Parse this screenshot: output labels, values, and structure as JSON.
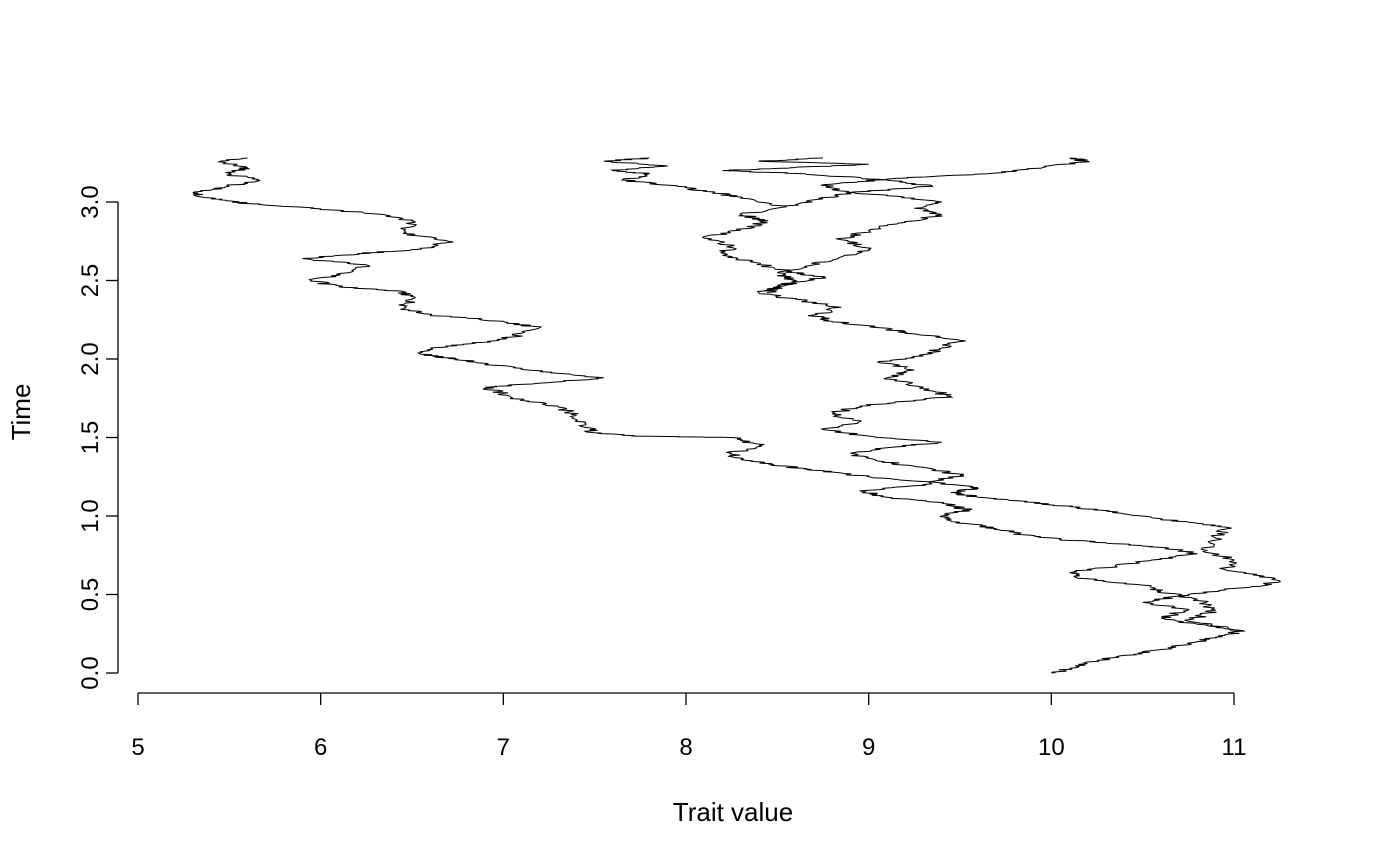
{
  "chart_data": {
    "type": "line",
    "title": "",
    "xlabel": "Trait value",
    "ylabel": "Time",
    "xlim": [
      5,
      11.3
    ],
    "ylim": [
      0,
      3.25
    ],
    "x_ticks": [
      "5",
      "6",
      "7",
      "8",
      "9",
      "10",
      "11"
    ],
    "x_tick_values": [
      5,
      6,
      7,
      8,
      9,
      10,
      11
    ],
    "y_ticks": [
      "0.0",
      "0.5",
      "1.0",
      "1.5",
      "2.0",
      "2.5",
      "3.0"
    ],
    "y_tick_values": [
      0,
      0.5,
      1.0,
      1.5,
      2.0,
      2.5,
      3.0
    ],
    "grid": false,
    "line_color": "#000000",
    "series": [
      {
        "points": [
          [
            10.0,
            0.0
          ],
          [
            10.1,
            0.03
          ],
          [
            10.25,
            0.08
          ],
          [
            10.45,
            0.12
          ],
          [
            10.6,
            0.15
          ],
          [
            10.8,
            0.2
          ],
          [
            10.95,
            0.24
          ],
          [
            11.05,
            0.27
          ]
        ]
      },
      {
        "points": [
          [
            11.05,
            0.27
          ],
          [
            10.8,
            0.31
          ],
          [
            10.6,
            0.35
          ],
          [
            10.75,
            0.4
          ],
          [
            10.5,
            0.45
          ],
          [
            10.75,
            0.5
          ],
          [
            11.1,
            0.55
          ],
          [
            11.25,
            0.58
          ],
          [
            11.15,
            0.62
          ],
          [
            10.95,
            0.66
          ],
          [
            11.0,
            0.72
          ],
          [
            10.85,
            0.78
          ],
          [
            10.9,
            0.86
          ],
          [
            10.95,
            0.93
          ],
          [
            10.75,
            0.96
          ],
          [
            10.55,
            0.99
          ],
          [
            10.3,
            1.03
          ],
          [
            10.1,
            1.06
          ],
          [
            9.85,
            1.09
          ],
          [
            9.6,
            1.12
          ],
          [
            9.45,
            1.15
          ],
          [
            9.6,
            1.18
          ],
          [
            9.3,
            1.22
          ],
          [
            9.0,
            1.25
          ],
          [
            8.8,
            1.28
          ],
          [
            8.65,
            1.3
          ],
          [
            8.45,
            1.33
          ],
          [
            8.3,
            1.36
          ],
          [
            8.25,
            1.4
          ],
          [
            8.4,
            1.45
          ],
          [
            8.25,
            1.5
          ],
          [
            7.7,
            1.51
          ],
          [
            7.5,
            1.53
          ],
          [
            7.45,
            1.58
          ],
          [
            7.4,
            1.64
          ],
          [
            7.3,
            1.7
          ],
          [
            7.1,
            1.74
          ],
          [
            7.0,
            1.78
          ],
          [
            6.9,
            1.82
          ],
          [
            7.25,
            1.85
          ],
          [
            7.55,
            1.88
          ],
          [
            7.2,
            1.92
          ],
          [
            6.95,
            1.96
          ],
          [
            6.75,
            2.0
          ],
          [
            6.55,
            2.03
          ],
          [
            6.6,
            2.07
          ],
          [
            6.85,
            2.1
          ],
          [
            7.05,
            2.14
          ],
          [
            7.2,
            2.2
          ],
          [
            7.0,
            2.24
          ],
          [
            6.6,
            2.28
          ],
          [
            6.45,
            2.32
          ],
          [
            6.5,
            2.38
          ],
          [
            6.45,
            2.43
          ],
          [
            6.1,
            2.46
          ],
          [
            5.95,
            2.5
          ],
          [
            6.15,
            2.55
          ],
          [
            6.25,
            2.6
          ],
          [
            5.9,
            2.64
          ],
          [
            6.2,
            2.67
          ],
          [
            6.55,
            2.7
          ],
          [
            6.7,
            2.75
          ],
          [
            6.45,
            2.8
          ],
          [
            6.5,
            2.88
          ],
          [
            6.35,
            2.92
          ],
          [
            5.95,
            2.96
          ],
          [
            5.6,
            2.99
          ],
          [
            5.4,
            3.02
          ],
          [
            5.3,
            3.06
          ],
          [
            5.5,
            3.1
          ],
          [
            5.65,
            3.14
          ],
          [
            5.5,
            3.18
          ],
          [
            5.6,
            3.22
          ],
          [
            5.45,
            3.26
          ],
          [
            5.6,
            3.28
          ]
        ]
      },
      {
        "points": [
          [
            11.05,
            0.27
          ],
          [
            10.75,
            0.33
          ],
          [
            10.9,
            0.4
          ],
          [
            10.8,
            0.47
          ],
          [
            10.6,
            0.52
          ],
          [
            10.5,
            0.56
          ],
          [
            10.2,
            0.6
          ],
          [
            10.1,
            0.64
          ],
          [
            10.35,
            0.68
          ],
          [
            10.55,
            0.72
          ],
          [
            10.8,
            0.76
          ],
          [
            10.6,
            0.8
          ],
          [
            10.3,
            0.83
          ],
          [
            10.05,
            0.85
          ],
          [
            9.85,
            0.88
          ],
          [
            9.7,
            0.92
          ],
          [
            9.5,
            0.96
          ],
          [
            9.4,
            1.0
          ],
          [
            9.55,
            1.04
          ],
          [
            9.4,
            1.08
          ],
          [
            9.1,
            1.12
          ],
          [
            8.95,
            1.16
          ],
          [
            9.3,
            1.2
          ],
          [
            9.5,
            1.26
          ],
          [
            9.3,
            1.31
          ],
          [
            9.05,
            1.35
          ],
          [
            8.9,
            1.4
          ],
          [
            9.15,
            1.44
          ],
          [
            9.4,
            1.47
          ],
          [
            9.05,
            1.5
          ],
          [
            8.75,
            1.55
          ],
          [
            8.95,
            1.6
          ],
          [
            8.8,
            1.65
          ],
          [
            8.95,
            1.7
          ],
          [
            9.2,
            1.73
          ],
          [
            9.45,
            1.76
          ],
          [
            9.3,
            1.82
          ],
          [
            9.1,
            1.88
          ],
          [
            9.25,
            1.93
          ],
          [
            9.05,
            1.98
          ],
          [
            9.3,
            2.02
          ],
          [
            9.4,
            2.07
          ],
          [
            9.5,
            2.12
          ],
          [
            9.25,
            2.16
          ],
          [
            9.05,
            2.2
          ],
          [
            8.8,
            2.24
          ],
          [
            8.7,
            2.28
          ],
          [
            8.85,
            2.33
          ],
          [
            8.6,
            2.38
          ],
          [
            8.4,
            2.42
          ],
          [
            8.55,
            2.47
          ],
          [
            8.75,
            2.52
          ],
          [
            8.55,
            2.56
          ],
          [
            8.35,
            2.62
          ],
          [
            8.2,
            2.66
          ],
          [
            8.25,
            2.72
          ],
          [
            8.1,
            2.77
          ],
          [
            8.3,
            2.82
          ],
          [
            8.45,
            2.88
          ],
          [
            8.3,
            2.92
          ],
          [
            8.55,
            2.97
          ],
          [
            8.35,
            3.02
          ],
          [
            8.15,
            3.06
          ],
          [
            7.95,
            3.1
          ],
          [
            7.65,
            3.14
          ],
          [
            7.8,
            3.18
          ],
          [
            7.6,
            3.2
          ],
          [
            7.9,
            3.23
          ],
          [
            7.55,
            3.26
          ],
          [
            7.8,
            3.28
          ]
        ]
      },
      {
        "points": [
          [
            8.45,
            2.42
          ],
          [
            8.5,
            2.46
          ],
          [
            8.6,
            2.5
          ],
          [
            8.5,
            2.55
          ],
          [
            8.7,
            2.6
          ],
          [
            8.85,
            2.65
          ],
          [
            9.0,
            2.7
          ],
          [
            8.85,
            2.76
          ],
          [
            9.0,
            2.82
          ],
          [
            9.2,
            2.87
          ],
          [
            9.4,
            2.92
          ],
          [
            9.25,
            2.96
          ],
          [
            9.4,
            3.0
          ],
          [
            9.1,
            3.04
          ],
          [
            8.85,
            3.07
          ],
          [
            8.75,
            3.11
          ],
          [
            9.15,
            3.15
          ],
          [
            9.65,
            3.18
          ],
          [
            9.95,
            3.22
          ],
          [
            10.2,
            3.26
          ],
          [
            10.1,
            3.28
          ]
        ]
      },
      {
        "points": [
          [
            8.55,
            2.97
          ],
          [
            8.75,
            3.02
          ],
          [
            8.9,
            3.06
          ],
          [
            9.35,
            3.1
          ],
          [
            9.1,
            3.14
          ],
          [
            8.65,
            3.18
          ],
          [
            8.2,
            3.2
          ],
          [
            8.6,
            3.22
          ],
          [
            9.0,
            3.24
          ],
          [
            8.4,
            3.26
          ],
          [
            8.75,
            3.28
          ]
        ]
      }
    ]
  }
}
